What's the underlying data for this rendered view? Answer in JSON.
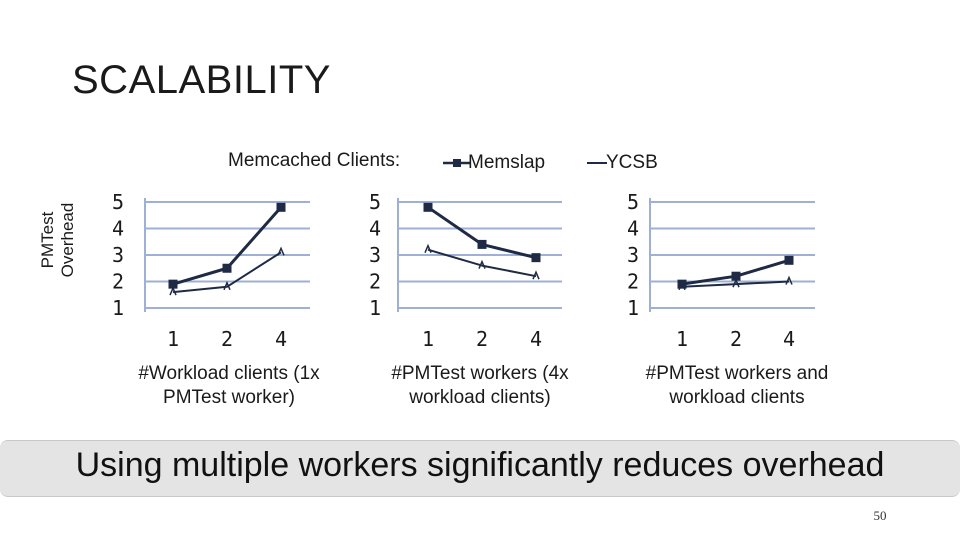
{
  "slide": {
    "title": "SCALABILITY",
    "takeaway": "Using multiple workers significantly reduces overhead",
    "page_number": "50"
  },
  "legend": {
    "prefix": "Memcached Clients:",
    "items": [
      "Memslap",
      "YCSB"
    ]
  },
  "chart_data": [
    {
      "type": "line",
      "ylabel": "PMTest Overhead",
      "xlabel": "#Workload clients (1x PMTest worker)",
      "categories": [
        "1",
        "2",
        "4"
      ],
      "yticks": [
        "5",
        "4",
        "3",
        "2",
        "1"
      ],
      "ylim": [
        1,
        5
      ],
      "grid": true,
      "series": [
        {
          "name": "Memslap",
          "values": [
            1.9,
            2.5,
            4.8
          ]
        },
        {
          "name": "YCSB",
          "values": [
            1.6,
            1.8,
            3.1
          ]
        }
      ]
    },
    {
      "type": "line",
      "ylabel": "",
      "xlabel": "#PMTest workers (4x workload clients)",
      "categories": [
        "1",
        "2",
        "4"
      ],
      "yticks": [
        "5",
        "4",
        "3",
        "2",
        "1"
      ],
      "ylim": [
        1,
        5
      ],
      "grid": true,
      "series": [
        {
          "name": "Memslap",
          "values": [
            4.8,
            3.4,
            2.9
          ]
        },
        {
          "name": "YCSB",
          "values": [
            3.2,
            2.6,
            2.2
          ]
        }
      ]
    },
    {
      "type": "line",
      "ylabel": "",
      "xlabel": "#PMTest workers and workload clients",
      "categories": [
        "1",
        "2",
        "4"
      ],
      "yticks": [
        "5",
        "4",
        "3",
        "2",
        "1"
      ],
      "ylim": [
        1,
        5
      ],
      "grid": true,
      "series": [
        {
          "name": "Memslap",
          "values": [
            1.9,
            2.2,
            2.8
          ]
        },
        {
          "name": "YCSB",
          "values": [
            1.8,
            1.9,
            2.0
          ]
        }
      ]
    }
  ],
  "colors": {
    "grid": "#9fb0d6",
    "axis": "#9fb0d6",
    "line": "#1f2a44",
    "banner": "#e4e4e4"
  }
}
